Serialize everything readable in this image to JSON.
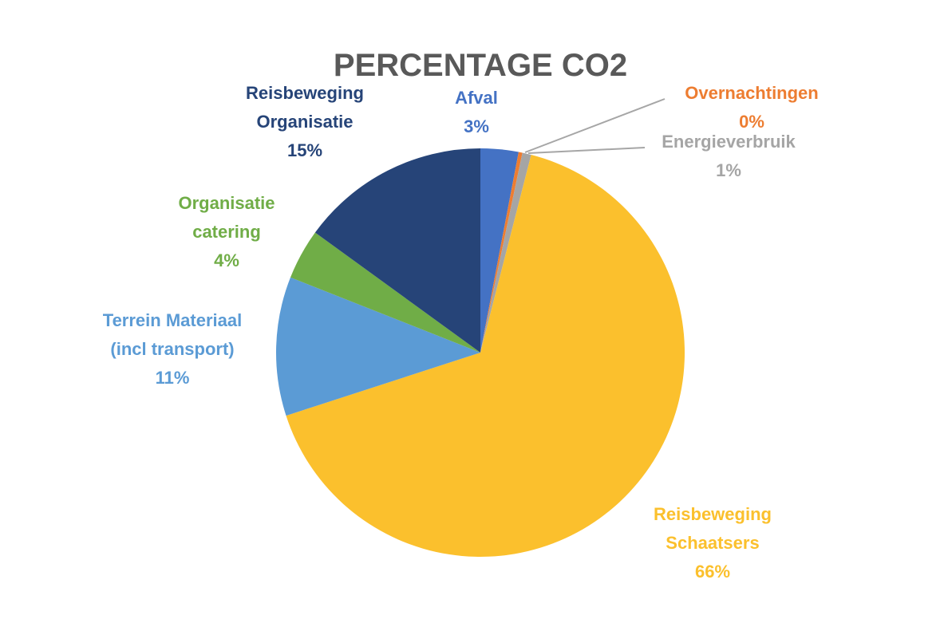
{
  "chart_data": {
    "type": "pie",
    "title": "PERCENTAGE CO2",
    "start_angle_deg": 0,
    "direction": "clockwise",
    "slices": [
      {
        "category": "Afval",
        "label_lines": [
          "Afval"
        ],
        "value": 3,
        "value_label": "3%",
        "color": "#4472C4"
      },
      {
        "category": "Overnachtingen",
        "label_lines": [
          "Overnachtingen"
        ],
        "value": 0.3,
        "value_label": "0%",
        "color": "#ED7D31"
      },
      {
        "category": "Energieverbruik",
        "label_lines": [
          "Energieverbruik"
        ],
        "value": 0.7,
        "value_label": "1%",
        "color": "#A5A5A5"
      },
      {
        "category": "Reisbeweging Schaatsers",
        "label_lines": [
          "Reisbeweging",
          "Schaatsers"
        ],
        "value": 66,
        "value_label": "66%",
        "color": "#FBC02D"
      },
      {
        "category": "Terrein Materiaal (incl transport)",
        "label_lines": [
          "Terrein Materiaal",
          "(incl transport)"
        ],
        "value": 11,
        "value_label": "11%",
        "color": "#5B9BD5"
      },
      {
        "category": "Organisatie catering",
        "label_lines": [
          "Organisatie",
          "catering"
        ],
        "value": 4,
        "value_label": "4%",
        "color": "#70AD47"
      },
      {
        "category": "Reisbeweging Organisatie",
        "label_lines": [
          "Reisbeweging",
          "Organisatie"
        ],
        "value": 15,
        "value_label": "15%",
        "color": "#264478"
      }
    ],
    "title_color": "#595959",
    "leader_line_color": "#A6A6A6"
  }
}
